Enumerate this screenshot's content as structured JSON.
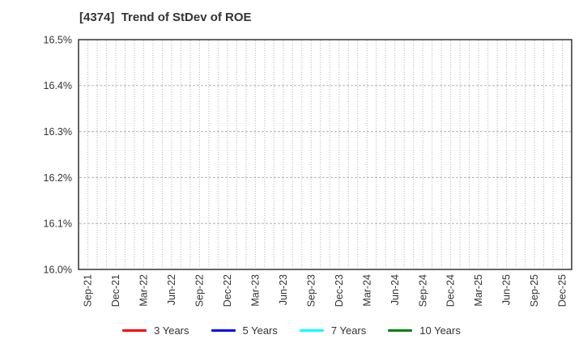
{
  "header": {
    "title": "[4374]  Trend of StDev of ROE"
  },
  "chart": {
    "colors": {
      "grid": "#b3b3b3",
      "border": "#333333",
      "tick_text": "#333333",
      "background": "#ffffff"
    },
    "y_axis": {
      "min": 16.0,
      "max": 16.5,
      "tick_step": 0.1,
      "tick_labels": [
        "16.0%",
        "16.1%",
        "16.2%",
        "16.3%",
        "16.4%",
        "16.5%"
      ],
      "grid_values": [
        16.1,
        16.2,
        16.3,
        16.4
      ]
    },
    "x_axis": {
      "tick_labels": [
        "Sep-21",
        "Dec-21",
        "Mar-22",
        "Jun-22",
        "Sep-22",
        "Dec-22",
        "Mar-23",
        "Jun-23",
        "Sep-23",
        "Dec-23",
        "Mar-24",
        "Jun-24",
        "Sep-24",
        "Dec-24",
        "Mar-25",
        "Jun-25",
        "Sep-25",
        "Dec-25"
      ],
      "minor_ticks_per_label": 3,
      "minor_tick_count": 52
    }
  },
  "legend": {
    "items": [
      {
        "label": "3 Years",
        "color": "#ff0000"
      },
      {
        "label": "5 Years",
        "color": "#0000ff"
      },
      {
        "label": "7 Years",
        "color": "#00ffff"
      },
      {
        "label": "10 Years",
        "color": "#008000"
      }
    ]
  },
  "chart_data": {
    "type": "line",
    "title": "[4374]  Trend of StDev of ROE",
    "categories": [
      "Sep-21",
      "Dec-21",
      "Mar-22",
      "Jun-22",
      "Sep-22",
      "Dec-22",
      "Mar-23",
      "Jun-23",
      "Sep-23",
      "Dec-23",
      "Mar-24",
      "Jun-24",
      "Sep-24",
      "Dec-24",
      "Mar-25",
      "Jun-25",
      "Sep-25",
      "Dec-25"
    ],
    "series": [
      {
        "name": "3 Years",
        "color": "#ff0000",
        "values": []
      },
      {
        "name": "5 Years",
        "color": "#0000ff",
        "values": []
      },
      {
        "name": "7 Years",
        "color": "#00ffff",
        "values": []
      },
      {
        "name": "10 Years",
        "color": "#008000",
        "values": []
      }
    ],
    "xlabel": "",
    "ylabel": "",
    "ylim": [
      16.0,
      16.5
    ],
    "y_tick_format": "percent",
    "grid": true,
    "legend_position": "bottom",
    "plot_note": "no data points are rendered inside the visible axis range"
  }
}
